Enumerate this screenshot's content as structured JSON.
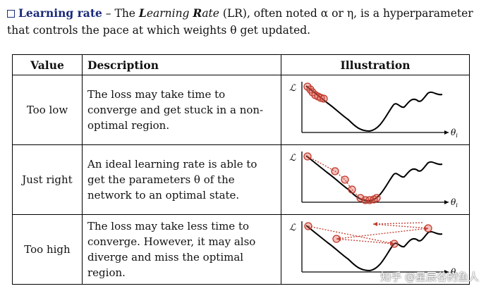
{
  "intro": {
    "term": "Learning rate",
    "dash": " – The ",
    "em1": "L",
    "mid1": "earning ",
    "em2": "R",
    "mid2": "ate",
    "rest": " (LR), often noted α or η, is a hyperparameter that controls the pace at which weights θ get updated."
  },
  "table": {
    "headers": {
      "value": "Value",
      "description": "Description",
      "illustration": "Illustration"
    },
    "rows": [
      {
        "value": "Too low",
        "description": "The loss may take time to converge and get stuck in a non-optimal region."
      },
      {
        "value": "Just right",
        "description": "An ideal learning rate is able to get the parameters θ of the network to an optimal state."
      },
      {
        "value": "Too high",
        "description": "The loss may take less time to converge. However, it may also diverge and miss the optimal region."
      }
    ]
  },
  "plot_labels": {
    "y_axis": "ℒ",
    "x_axis": "θ",
    "x_sub": "i"
  },
  "colors": {
    "term": "#1b2a7a",
    "marker": "#c0392b"
  },
  "watermark": "知乎 @星辰谷的鱼人"
}
